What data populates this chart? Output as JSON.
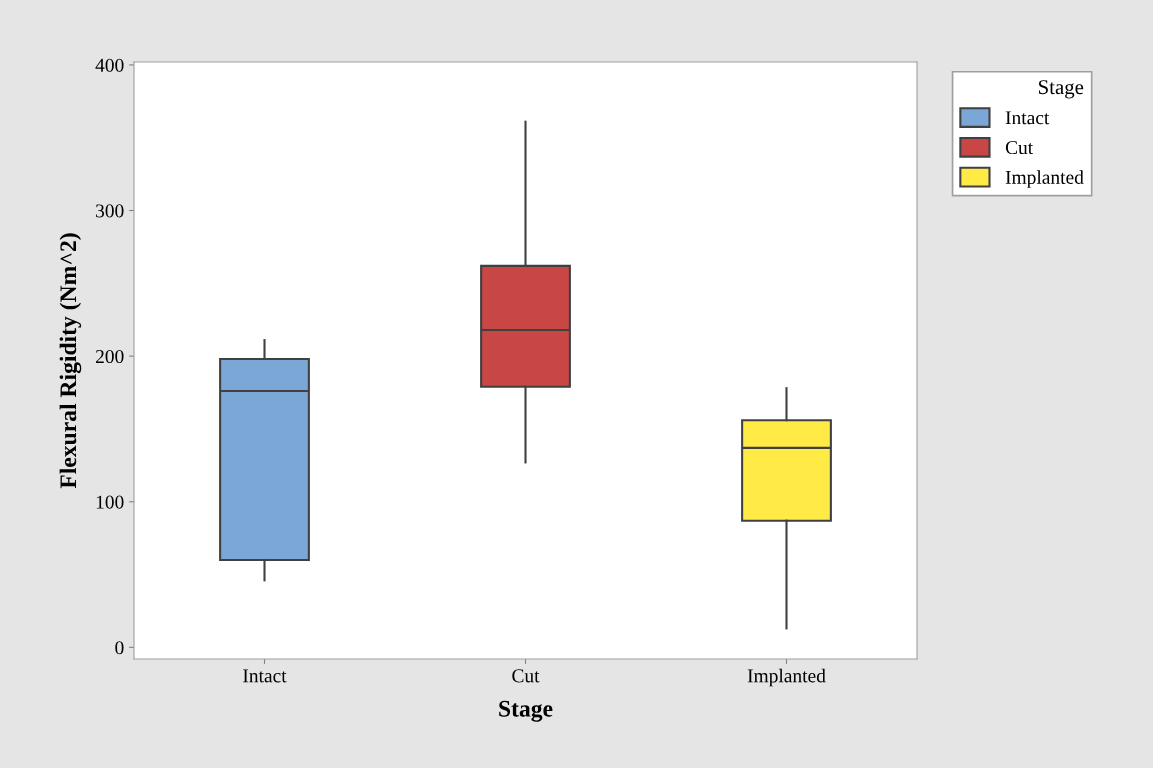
{
  "chart_data": {
    "type": "box",
    "xlabel": "Stage",
    "ylabel": "Flexural Rigidity (Nm^2)",
    "categories": [
      "Intact",
      "Cut",
      "Implanted"
    ],
    "series": [
      {
        "name": "Intact",
        "color": "#7ba7d7",
        "boxes": [
          {
            "low": 46,
            "q1": 60,
            "median": 176,
            "q3": 198,
            "high": 211
          },
          null,
          null
        ]
      },
      {
        "name": "Cut",
        "color": "#c84644",
        "boxes": [
          null,
          {
            "low": 127,
            "q1": 179,
            "median": 218,
            "q3": 262,
            "high": 361
          },
          null
        ]
      },
      {
        "name": "Implanted",
        "color": "#ffea46",
        "boxes": [
          null,
          null,
          {
            "low": 13,
            "q1": 87,
            "median": 137,
            "q3": 156,
            "high": 178
          }
        ]
      }
    ],
    "ylim": [
      -8,
      402
    ],
    "yticks": [
      0,
      100,
      200,
      300,
      400
    ],
    "legend": "top right",
    "legend_title": "Stage",
    "grid": false
  }
}
